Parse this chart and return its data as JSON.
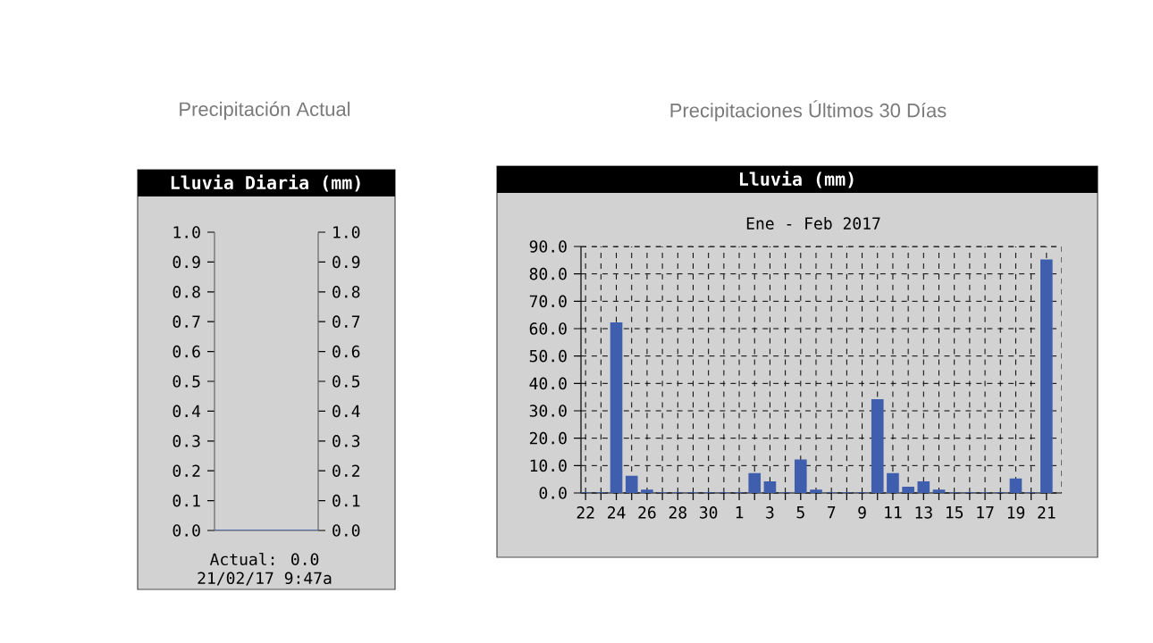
{
  "chart_data": [
    {
      "type": "bar",
      "title": "Precipitación Actual",
      "subtitle": "Lluvia Diaria (mm)",
      "categories": [
        null
      ],
      "values": [
        0.0
      ],
      "color": "#3f5fae",
      "ylim": [
        0,
        1
      ],
      "yticks": [
        {
          "value": 0,
          "label": "0.0"
        },
        {
          "value": 0.1,
          "label": "0.1"
        },
        {
          "value": 0.2,
          "label": "0.2"
        },
        {
          "value": 0.3,
          "label": "0.3"
        },
        {
          "value": 0.4,
          "label": "0.4"
        },
        {
          "value": 0.5,
          "label": "0.5"
        },
        {
          "value": 0.6,
          "label": "0.6"
        },
        {
          "value": 0.7,
          "label": "0.7"
        },
        {
          "value": 0.8,
          "label": "0.8"
        },
        {
          "value": 0.9,
          "label": "0.9"
        },
        {
          "value": 1,
          "label": "1.0"
        }
      ],
      "y2lim": [
        0,
        1
      ],
      "y2ticks": [
        {
          "value": 0,
          "label": "0.0"
        },
        {
          "value": 0.1,
          "label": "0.1"
        },
        {
          "value": 0.2,
          "label": "0.2"
        },
        {
          "value": 0.3,
          "label": "0.3"
        },
        {
          "value": 0.4,
          "label": "0.4"
        },
        {
          "value": 0.5,
          "label": "0.5"
        },
        {
          "value": 0.6,
          "label": "0.6"
        },
        {
          "value": 0.7,
          "label": "0.7"
        },
        {
          "value": 0.8,
          "label": "0.8"
        },
        {
          "value": 0.9,
          "label": "0.9"
        },
        {
          "value": 1,
          "label": "1.0"
        }
      ],
      "annotations": [
        "Actual: 0.0",
        "21/02/17  9:47a"
      ]
    },
    {
      "type": "bar",
      "title": "Precipitaciones Últimos 30 Días",
      "subtitle": "Lluvia (mm)",
      "annotations": [
        "Ene - Feb  2017"
      ],
      "categories": [
        "22",
        null,
        "24",
        null,
        "26",
        null,
        "28",
        null,
        "30",
        null,
        "1",
        null,
        "3",
        null,
        "5",
        null,
        "7",
        null,
        "9",
        null,
        "11",
        null,
        "13",
        null,
        "15",
        null,
        "17",
        null,
        "19",
        null,
        "21"
      ],
      "values": [
        0,
        0,
        62,
        6,
        1,
        0,
        0,
        0,
        0,
        0,
        0,
        7,
        4,
        0,
        12,
        1,
        0,
        0,
        0,
        34,
        7,
        2,
        4,
        1,
        0,
        0,
        0,
        0,
        5,
        0,
        85
      ],
      "color": "#3f5fae",
      "ylim": [
        0,
        90
      ],
      "yticks": [
        {
          "value": 0,
          "label": "0.0"
        },
        {
          "value": 10,
          "label": "10.0"
        },
        {
          "value": 20,
          "label": "20.0"
        },
        {
          "value": 30,
          "label": "30.0"
        },
        {
          "value": 40,
          "label": "40.0"
        },
        {
          "value": 50,
          "label": "50.0"
        },
        {
          "value": 60,
          "label": "60.0"
        },
        {
          "value": 70,
          "label": "70.0"
        },
        {
          "value": 80,
          "label": "80.0"
        },
        {
          "value": 90,
          "label": "90.0"
        }
      ],
      "grid": true
    }
  ]
}
